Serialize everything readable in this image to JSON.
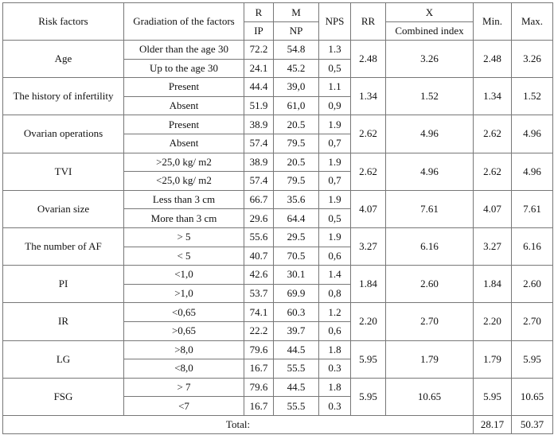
{
  "header": {
    "risk_factors": "Risk factors",
    "gradation": "Gradiation of the factors",
    "r": "R",
    "m": "M",
    "nps": "NPS",
    "rr": "RR",
    "x": "X",
    "min": "Min.",
    "max": "Max.",
    "ip": "IP",
    "np": "NP",
    "combined": "Combined index"
  },
  "groups": [
    {
      "factor": "Age",
      "rr": "2.48",
      "x": "3.26",
      "min": "2.48",
      "max": "3.26",
      "rows": [
        {
          "gradation": "Older than the age 30",
          "ip": "72.2",
          "np": "54.8",
          "nps": "1.3"
        },
        {
          "gradation": "Up to the age 30",
          "ip": "24.1",
          "np": "45.2",
          "nps": "0,5"
        }
      ]
    },
    {
      "factor": "The history of infertility",
      "rr": "1.34",
      "x": "1.52",
      "min": "1.34",
      "max": "1.52",
      "rows": [
        {
          "gradation": "Present",
          "ip": "44.4",
          "np": "39,0",
          "nps": "1.1"
        },
        {
          "gradation": "Absent",
          "ip": "51.9",
          "np": "61,0",
          "nps": "0,9"
        }
      ]
    },
    {
      "factor": "Ovarian operations",
      "rr": "2.62",
      "x": "4.96",
      "min": "2.62",
      "max": "4.96",
      "rows": [
        {
          "gradation": "Present",
          "ip": "38.9",
          "np": "20.5",
          "nps": "1.9"
        },
        {
          "gradation": "Absent",
          "ip": "57.4",
          "np": "79.5",
          "nps": "0,7"
        }
      ]
    },
    {
      "factor": "TVI",
      "rr": "2.62",
      "x": "4.96",
      "min": "2.62",
      "max": "4.96",
      "rows": [
        {
          "gradation": ">25,0 kg/ m2",
          "ip": "38.9",
          "np": "20.5",
          "nps": "1.9"
        },
        {
          "gradation": "<25,0 kg/ m2",
          "ip": "57.4",
          "np": "79.5",
          "nps": "0,7"
        }
      ]
    },
    {
      "factor": "Ovarian size",
      "rr": "4.07",
      "x": "7.61",
      "min": "4.07",
      "max": "7.61",
      "rows": [
        {
          "gradation": "Less than 3 cm",
          "ip": "66.7",
          "np": "35.6",
          "nps": "1.9"
        },
        {
          "gradation": "More than 3 cm",
          "ip": "29.6",
          "np": "64.4",
          "nps": "0,5"
        }
      ]
    },
    {
      "factor": "The number of AF",
      "rr": "3.27",
      "x": "6.16",
      "min": "3.27",
      "max": "6.16",
      "rows": [
        {
          "gradation": "> 5",
          "ip": "55.6",
          "np": "29.5",
          "nps": "1.9"
        },
        {
          "gradation": "< 5",
          "ip": "40.7",
          "np": "70.5",
          "nps": "0,6"
        }
      ]
    },
    {
      "factor": "PI",
      "rr": "1.84",
      "x": "2.60",
      "min": "1.84",
      "max": "2.60",
      "rows": [
        {
          "gradation": "<1,0",
          "ip": "42.6",
          "np": "30.1",
          "nps": "1.4"
        },
        {
          "gradation": ">1,0",
          "ip": "53.7",
          "np": "69.9",
          "nps": "0,8"
        }
      ]
    },
    {
      "factor": "IR",
      "rr": "2.20",
      "x": "2.70",
      "min": "2.20",
      "max": "2.70",
      "rows": [
        {
          "gradation": "<0,65",
          "ip": "74.1",
          "np": "60.3",
          "nps": "1.2"
        },
        {
          "gradation": ">0,65",
          "ip": "22.2",
          "np": "39.7",
          "nps": "0,6"
        }
      ]
    },
    {
      "factor": "LG",
      "rr": "5.95",
      "x": "1.79",
      "min": "1.79",
      "max": "5.95",
      "rows": [
        {
          "gradation": ">8,0",
          "ip": "79.6",
          "np": "44.5",
          "nps": "1.8"
        },
        {
          "gradation": "<8,0",
          "ip": "16.7",
          "np": "55.5",
          "nps": "0.3"
        }
      ]
    },
    {
      "factor": "FSG",
      "rr": "5.95",
      "x": "10.65",
      "min": "5.95",
      "max": "10.65",
      "rows": [
        {
          "gradation": "> 7",
          "ip": "79.6",
          "np": "44.5",
          "nps": "1.8"
        },
        {
          "gradation": "<7",
          "ip": "16.7",
          "np": "55.5",
          "nps": "0.3"
        }
      ]
    }
  ],
  "total": {
    "label": "Total:",
    "min": "28.17",
    "max": "50.37"
  }
}
